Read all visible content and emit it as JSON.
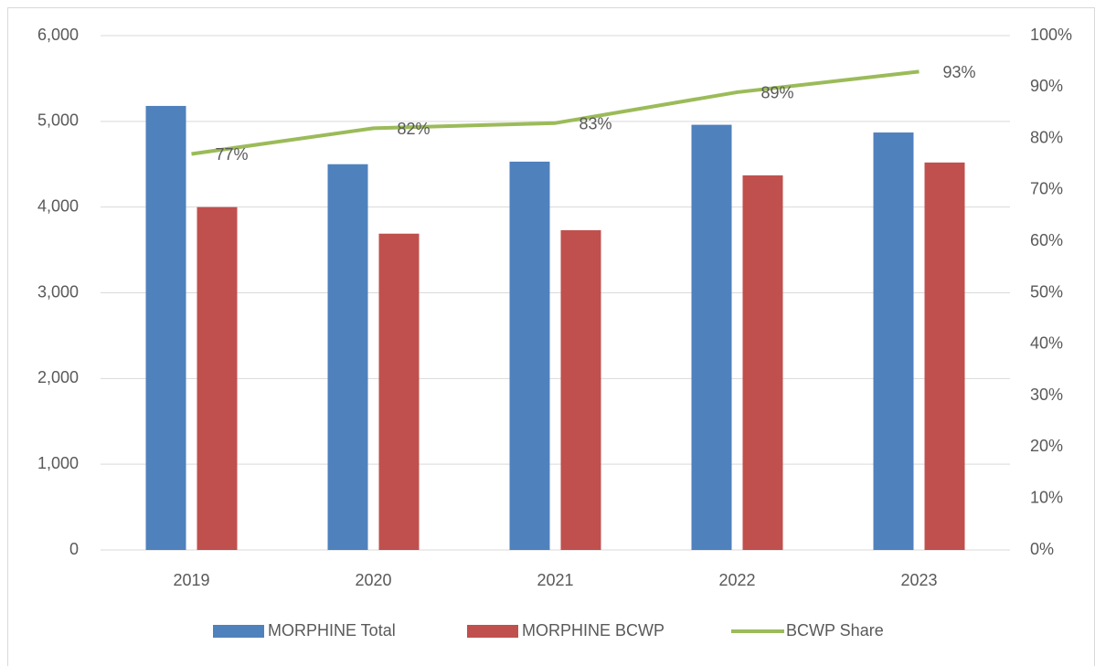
{
  "chart_data": {
    "type": "bar",
    "categories": [
      "2019",
      "2020",
      "2021",
      "2022",
      "2023"
    ],
    "series": [
      {
        "name": "MORPHINE Total",
        "color": "#4f81bd",
        "values": [
          5180,
          4500,
          4530,
          4960,
          4870
        ]
      },
      {
        "name": "MORPHINE BCWP",
        "color": "#c0504d",
        "values": [
          4000,
          3690,
          3730,
          4370,
          4520
        ]
      },
      {
        "name": "BCWP Share",
        "color": "#9bbb59",
        "type": "line",
        "axis": "y2",
        "values": [
          77,
          82,
          83,
          89,
          93
        ],
        "value_labels": [
          "77%",
          "82%",
          "83%",
          "89%",
          "93%"
        ]
      }
    ],
    "ylim": [
      0,
      6000
    ],
    "yticks": [
      0,
      {
        "value": 1000,
        "label": "1,000"
      },
      {
        "value": 2000,
        "label": "2,000"
      },
      {
        "value": 3000,
        "label": "3,000"
      },
      {
        "value": 4000,
        "label": "4,000"
      },
      {
        "value": 5000,
        "label": "5,000"
      },
      {
        "value": 6000,
        "label": "6,000"
      }
    ],
    "y2lim": [
      0,
      100
    ],
    "y2ticks": [
      {
        "value": 0,
        "label": "0%"
      },
      {
        "value": 10,
        "label": "10%"
      },
      {
        "value": 20,
        "label": "20%"
      },
      {
        "value": 30,
        "label": "30%"
      },
      {
        "value": 40,
        "label": "40%"
      },
      {
        "value": 50,
        "label": "50%"
      },
      {
        "value": 60,
        "label": "60%"
      },
      {
        "value": 70,
        "label": "70%"
      },
      {
        "value": 80,
        "label": "80%"
      },
      {
        "value": 90,
        "label": "90%"
      },
      {
        "value": 100,
        "label": "100%"
      }
    ],
    "grid": true,
    "legend": "bottom"
  }
}
